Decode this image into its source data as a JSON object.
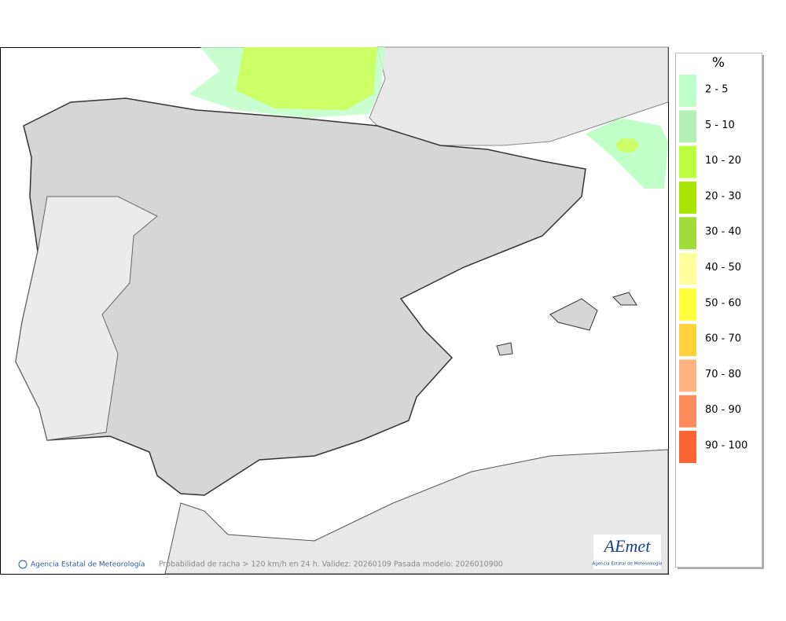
{
  "legend": {
    "title": "%",
    "items": [
      {
        "label": "2 - 5",
        "color": "#c0ffc8"
      },
      {
        "label": "5 - 10",
        "color": "#b4f0b4"
      },
      {
        "label": "10 - 20",
        "color": "#bcff3c"
      },
      {
        "label": "20 - 30",
        "color": "#a8e600"
      },
      {
        "label": "30 - 40",
        "color": "#a0dc3c"
      },
      {
        "label": "40 - 50",
        "color": "#ffff9c"
      },
      {
        "label": "50 - 60",
        "color": "#ffff3c"
      },
      {
        "label": "60 - 70",
        "color": "#ffd23c"
      },
      {
        "label": "70 - 80",
        "color": "#ffb482"
      },
      {
        "label": "80 - 90",
        "color": "#ff8c5a"
      },
      {
        "label": "90 - 100",
        "color": "#ff6432"
      }
    ]
  },
  "footer": {
    "credit": "Agencia Estatal de Meteorología",
    "caption": "Probabilidad de racha > 120 km/h en 24 h. Validez: 20260109 Pasada modelo: 2026010900"
  },
  "logo": {
    "text": "AEmet",
    "subtitle": "Agencia Estatal de Meteorología"
  }
}
